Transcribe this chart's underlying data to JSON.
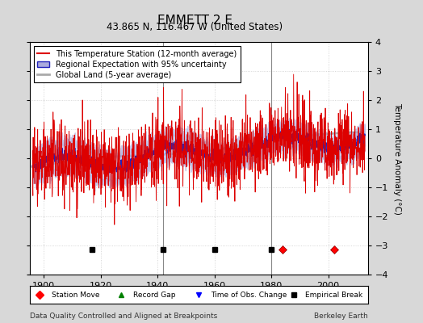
{
  "title": "EMMETT 2 E",
  "subtitle": "43.865 N, 116.467 W (United States)",
  "xlabel_note": "Data Quality Controlled and Aligned at Breakpoints",
  "xlabel_note_right": "Berkeley Earth",
  "ylabel": "Temperature Anomaly (°C)",
  "ylim": [
    -4,
    4
  ],
  "xlim": [
    1895,
    2014
  ],
  "yticks": [
    -4,
    -3,
    -2,
    -1,
    0,
    1,
    2,
    3,
    4
  ],
  "xticks": [
    1900,
    1920,
    1940,
    1960,
    1980,
    2000
  ],
  "bg_color": "#d8d8d8",
  "plot_bg_color": "#ffffff",
  "station_color": "#dd0000",
  "regional_color": "#2222bb",
  "regional_fill_color": "#aaaadd",
  "global_color": "#aaaaaa",
  "legend_entries": [
    "This Temperature Station (12-month average)",
    "Regional Expectation with 95% uncertainty",
    "Global Land (5-year average)"
  ],
  "marker_events": {
    "station_move": [
      1984,
      2002
    ],
    "record_gap": [],
    "time_obs_change": [],
    "empirical_break": [
      1917,
      1942,
      1960,
      1980
    ]
  },
  "vertical_lines": [
    1942,
    1980
  ],
  "seed": 42
}
